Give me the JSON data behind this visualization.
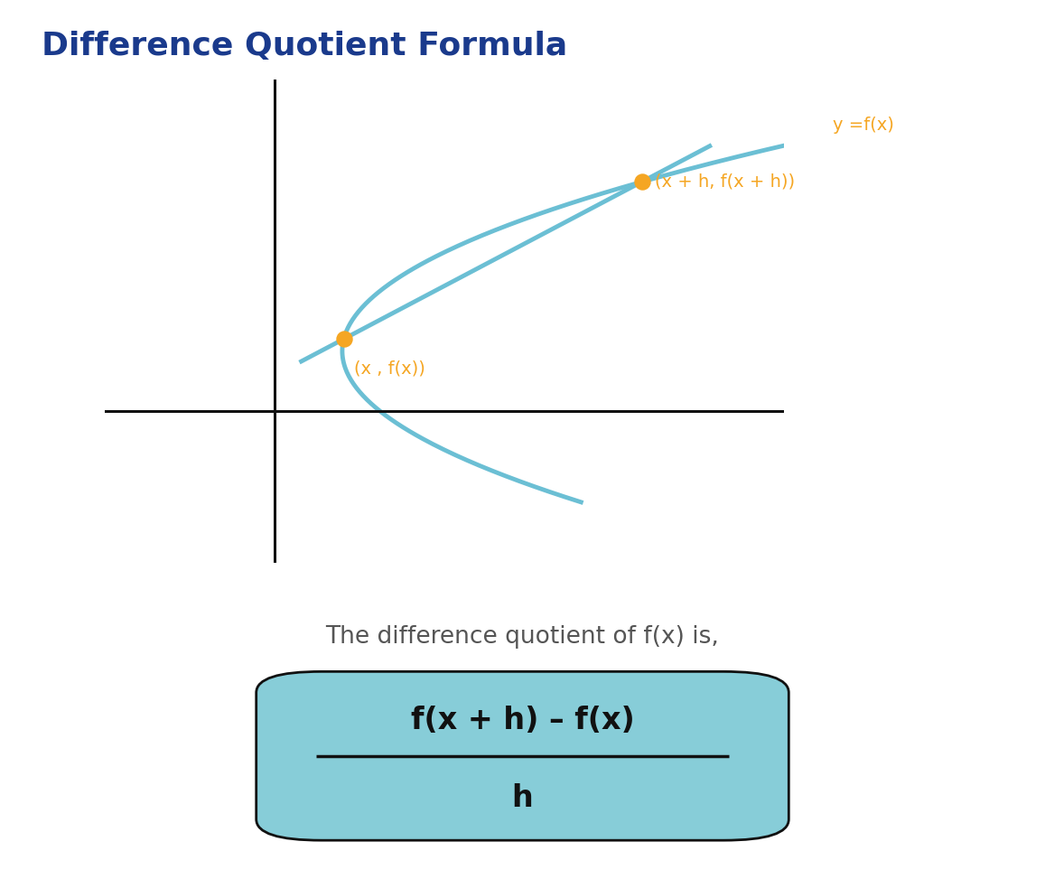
{
  "title": "Difference Quotient Formula",
  "title_color": "#1a3a8c",
  "title_fontsize": 26,
  "background_color": "#ffffff",
  "curve_color": "#6bbfd4",
  "curve_linewidth": 3.5,
  "secant_color": "#6bbfd4",
  "secant_linewidth": 3.5,
  "point_color": "#f5a623",
  "point_size": 100,
  "label_color": "#f5a623",
  "label_fontsize": 14,
  "axes_color": "#111111",
  "axes_linewidth": 2.2,
  "y_label": "y =f(x)",
  "point1_label": "(x , f(x))",
  "point2_label": "(x + h, f(x + h))",
  "desc_text": "The difference quotient of f(x) is,",
  "desc_fontsize": 19,
  "formula_numerator": "f(x + h) – f(x)",
  "formula_denominator": "h",
  "formula_fontsize": 24,
  "formula_box_color": "#87cdd8",
  "formula_box_edgecolor": "#111111",
  "formula_text_color": "#111111"
}
